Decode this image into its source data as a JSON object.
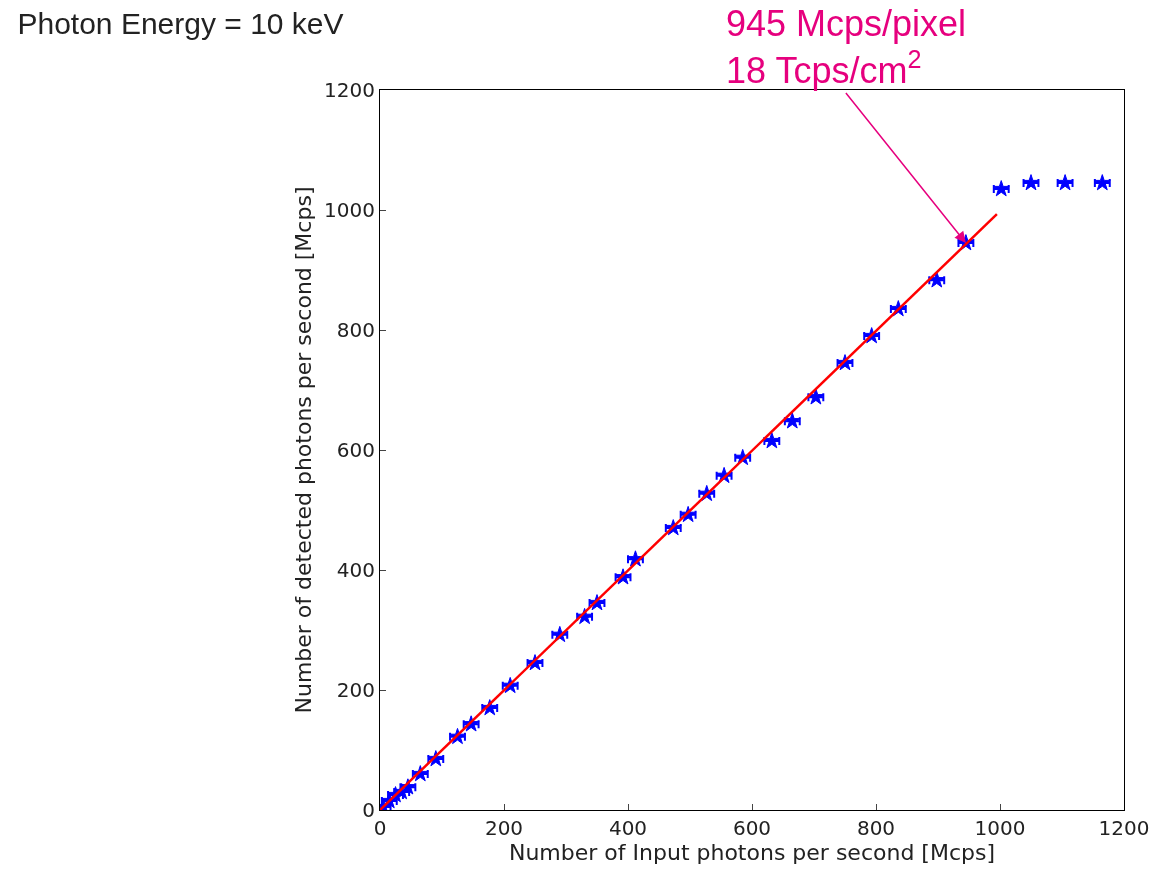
{
  "chart_data": {
    "type": "scatter",
    "title": "Photon Energy = 10 keV",
    "xlabel": "Number of Input photons per second [Mcps]",
    "ylabel": "Number of detected photons per second [Mcps]",
    "x": [
      5,
      15,
      25,
      35,
      45,
      65,
      90,
      125,
      147,
      177,
      210,
      250,
      290,
      330,
      350,
      392,
      412,
      473,
      497,
      527,
      555,
      585,
      632,
      665,
      703,
      750,
      793,
      836,
      898,
      945,
      1002,
      1050,
      1105,
      1165
    ],
    "series": [
      {
        "color": "#0000ff",
        "marker": "star",
        "values": [
          5,
          15,
          25,
          30,
          38,
          60,
          85,
          122,
          143,
          170,
          207,
          245,
          292,
          322,
          345,
          388,
          418,
          470,
          492,
          527,
          557,
          587,
          615,
          648,
          688,
          745,
          790,
          835,
          883,
          945,
          1035,
          1045,
          1045,
          1045
        ],
        "xerrors": [
          12,
          12,
          12,
          12,
          12,
          12,
          12,
          12,
          12,
          12,
          12,
          12,
          12,
          12,
          12,
          12,
          12,
          12,
          12,
          12,
          12,
          12,
          12,
          12,
          12,
          12,
          12,
          12,
          12,
          12,
          12,
          12,
          12,
          12
        ]
      },
      {
        "type": "line",
        "color": "#ff0000",
        "line_style": "solid",
        "x": [
          0,
          995
        ],
        "values": [
          0,
          993
        ]
      }
    ],
    "xlim": [
      0,
      1200
    ],
    "ylim": [
      0,
      1200
    ],
    "xticks": [
      0,
      200,
      400,
      600,
      800,
      1000,
      1200
    ],
    "yticks": [
      0,
      200,
      400,
      600,
      800,
      1000,
      1200
    ],
    "annotations": [
      {
        "text": "945 Mcps/pixel\n18 Tcps/cm$^{2}$",
        "x": 945,
        "y": 945
      }
    ]
  }
}
